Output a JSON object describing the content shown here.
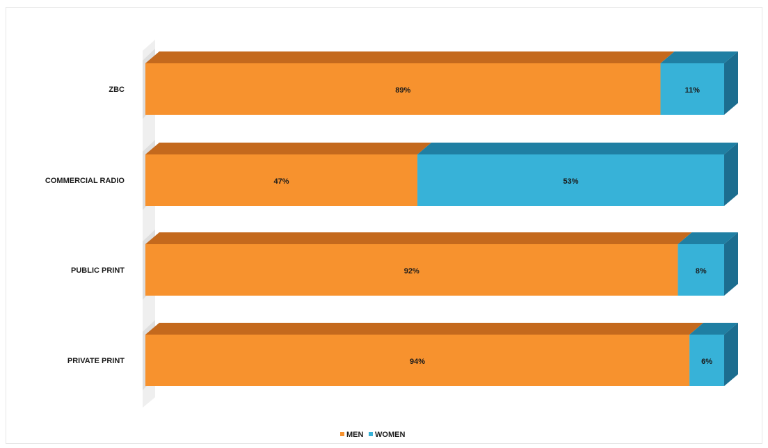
{
  "colors": {
    "men_front": "#f7922e",
    "men_top": "#c4691d",
    "women_front": "#37b2d8",
    "women_top": "#1f7fa3",
    "women_side": "#1c6d8f",
    "floor": "#cfcfcf",
    "label": "#1a1a1a"
  },
  "chart_data": {
    "type": "bar",
    "orientation": "horizontal",
    "stacked": "percent",
    "style": "3d",
    "title": "",
    "xlabel": "",
    "ylabel": "",
    "categories": [
      "ZBC",
      "COMMERCIAL RADIO",
      "PUBLIC PRINT",
      "PRIVATE PRINT"
    ],
    "series": [
      {
        "name": "MEN",
        "values": [
          89,
          47,
          92,
          94
        ],
        "labels": [
          "89%",
          "47%",
          "92%",
          "94%"
        ]
      },
      {
        "name": "WOMEN",
        "values": [
          11,
          53,
          8,
          6
        ],
        "labels": [
          "11%",
          "53%",
          "8%",
          "6%"
        ]
      }
    ],
    "legend_position": "bottom",
    "grid": false
  }
}
